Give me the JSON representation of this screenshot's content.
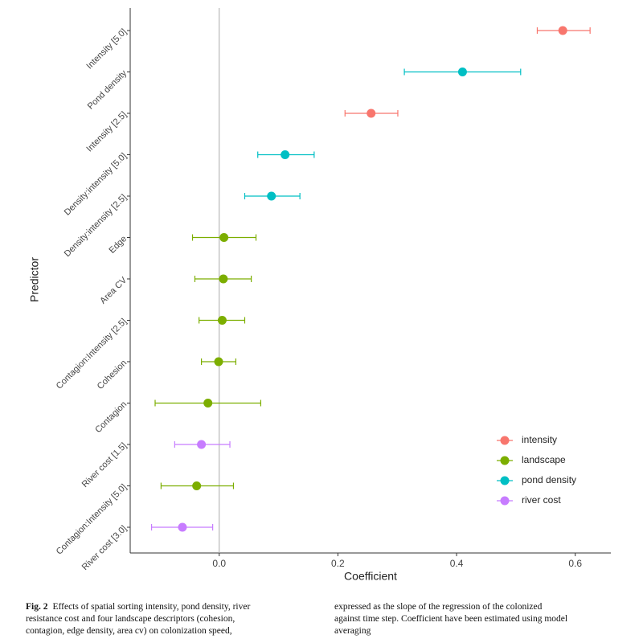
{
  "chart_data": {
    "type": "dot-whisker",
    "x_label": "Coefficient",
    "y_label": "Predictor",
    "categories": [
      "Intensity [5.0]",
      "Pond density",
      "Intensity [2.5]",
      "Density:intensity [5.0]",
      "Density:intensity [2.5]",
      "Edge",
      "Area CV",
      "Contagion:Intensity [2.5]",
      "Cohesion",
      "Contagion",
      "River cost [1.5]",
      "Contagion:Intensity [5.0]",
      "River cost [3.0]"
    ],
    "series": [
      {
        "name": "intensity",
        "color": "#F8766D",
        "values": [
          0.579,
          null,
          0.256,
          null,
          null,
          null,
          null,
          null,
          null,
          null,
          null,
          null,
          null
        ]
      },
      {
        "name": "landscape",
        "color": "#7CAE00",
        "values": [
          null,
          null,
          null,
          null,
          null,
          0.008,
          0.007,
          0.005,
          -0.001,
          -0.019,
          null,
          -0.038,
          null
        ]
      },
      {
        "name": "pond density",
        "color": "#00BFC4",
        "values": [
          null,
          0.41,
          null,
          0.111,
          0.088,
          null,
          null,
          null,
          null,
          null,
          null,
          null,
          null
        ]
      },
      {
        "name": "river cost",
        "color": "#C77CFF",
        "values": [
          null,
          null,
          null,
          null,
          null,
          null,
          null,
          null,
          null,
          null,
          -0.03,
          null,
          -0.062
        ]
      }
    ],
    "lower": [
      0.536,
      0.312,
      0.212,
      0.065,
      0.043,
      -0.045,
      -0.041,
      -0.034,
      -0.03,
      -0.108,
      -0.075,
      -0.098,
      -0.114
    ],
    "upper": [
      0.625,
      0.508,
      0.301,
      0.16,
      0.136,
      0.062,
      0.054,
      0.043,
      0.028,
      0.07,
      0.018,
      0.024,
      -0.011
    ],
    "xlim": [
      -0.15,
      0.66
    ],
    "xticks": [
      {
        "value": 0,
        "label": "0.0"
      },
      0.2,
      0.4,
      0.6
    ],
    "legend": "bottom-right"
  },
  "caption": {
    "label": "Fig. 2",
    "left_lines": [
      "Effects of spatial sorting intensity, pond density, river",
      "resistance cost and four landscape descriptors (cohesion,",
      "contagion, edge density, area cv) on colonization speed,"
    ],
    "right_lines": [
      "expressed as the slope of the regression of the colonized",
      "against time step. Coefficient have been estimated using model",
      "averaging"
    ]
  }
}
